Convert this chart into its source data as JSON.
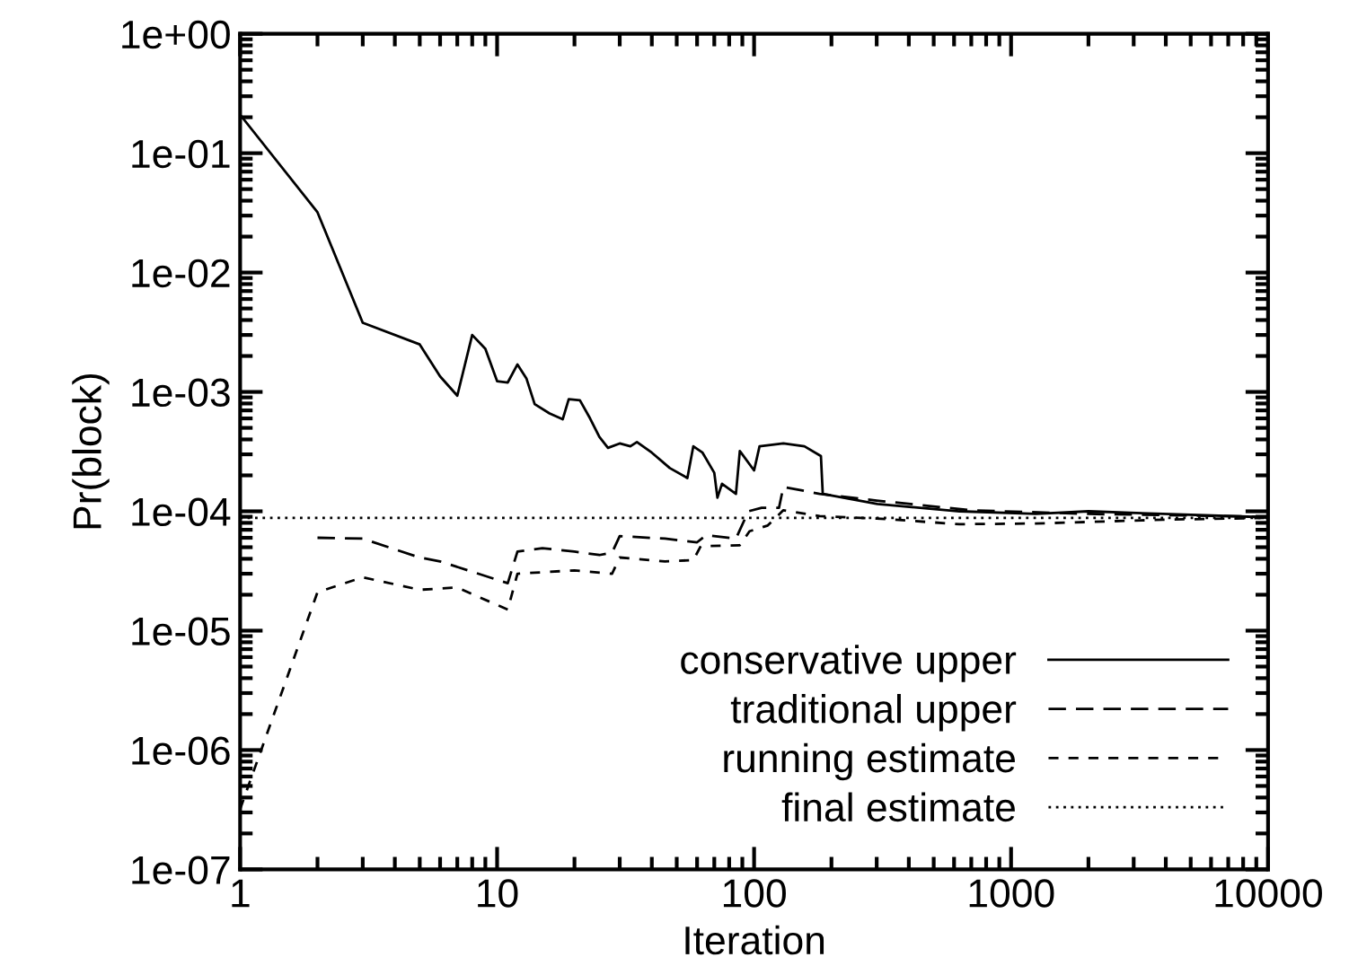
{
  "chart_data": {
    "type": "line",
    "xlabel": "Iteration",
    "ylabel": "Pr(block)",
    "log": "xy",
    "grid": false,
    "legend": "bottom right",
    "marker": "none",
    "xlim": [
      1,
      10000
    ],
    "xticks": [
      1,
      10,
      100,
      1000,
      10000
    ],
    "ylim": [
      1e-07,
      1
    ],
    "yticks": [
      {
        "value": 1e-07,
        "label": "1e-07"
      },
      {
        "value": 1e-06,
        "label": "1e-06"
      },
      {
        "value": 1e-05,
        "label": "1e-05"
      },
      {
        "value": 0.0001,
        "label": "1e-04"
      },
      {
        "value": 0.001,
        "label": "1e-03"
      },
      {
        "value": 0.01,
        "label": "1e-02"
      },
      {
        "value": 0.1,
        "label": "1e-01"
      },
      {
        "value": 1,
        "label": "1e+00"
      }
    ],
    "series": [
      {
        "name": "conservative upper",
        "color": "#000000",
        "line_style": "solid",
        "x": [
          1,
          2,
          3,
          5,
          6,
          7,
          8,
          9,
          10,
          11,
          12,
          13,
          14,
          16,
          18,
          19,
          21,
          23,
          25,
          27,
          30,
          33,
          35,
          40,
          47,
          55,
          58,
          63,
          70,
          72,
          75,
          85,
          88,
          100,
          105,
          130,
          157,
          182,
          185,
          302,
          630,
          1250,
          2000,
          3900,
          10000
        ],
        "values": [
          0.21,
          0.032,
          0.0038,
          0.0025,
          0.00135,
          0.00093,
          0.003,
          0.0023,
          0.00123,
          0.0012,
          0.0017,
          0.0013,
          0.00079,
          0.00066,
          0.00059,
          0.00087,
          0.00085,
          0.0006,
          0.00042,
          0.00034,
          0.00037,
          0.00035,
          0.00038,
          0.00031,
          0.00023,
          0.00019,
          0.00035,
          0.00031,
          0.00021,
          0.00013,
          0.00017,
          0.00014,
          0.00032,
          0.00022,
          0.00035,
          0.00037,
          0.00035,
          0.00029,
          0.00014,
          0.000115,
          0.0001,
          9.5e-05,
          0.0001,
          9.5e-05,
          8.9e-05
        ]
      },
      {
        "name": "traditional upper",
        "color": "#000000",
        "line_style": "dashed",
        "x": [
          2,
          3,
          5,
          6,
          11,
          12,
          15,
          20,
          25,
          28,
          30,
          45,
          60,
          65,
          85,
          95,
          107,
          125,
          130,
          180,
          300,
          700,
          2000,
          10000
        ],
        "values": [
          6e-05,
          5.9e-05,
          4.1e-05,
          3.8e-05,
          2.5e-05,
          4.6e-05,
          4.9e-05,
          4.6e-05,
          4.3e-05,
          4.5e-05,
          6.2e-05,
          5.9e-05,
          5.5e-05,
          6.3e-05,
          5.9e-05,
          0.0001,
          0.000107,
          0.000107,
          0.00016,
          0.00014,
          0.000123,
          0.000102,
          9.5e-05,
          9e-05
        ]
      },
      {
        "name": "running estimate",
        "color": "#000000",
        "line_style": "densely dashed",
        "x": [
          1,
          2,
          3,
          5,
          7,
          11,
          12,
          20,
          28,
          30,
          45,
          58,
          62,
          88,
          96,
          113,
          130,
          180,
          300,
          630,
          1250,
          3900,
          10000
        ],
        "values": [
          3.2e-07,
          2.1e-05,
          2.8e-05,
          2.2e-05,
          2.3e-05,
          1.5e-05,
          3e-05,
          3.2e-05,
          3e-05,
          4.1e-05,
          3.8e-05,
          3.9e-05,
          5.1e-05,
          5.2e-05,
          6.8e-05,
          7.6e-05,
          0.000102,
          9.1e-05,
          8.7e-05,
          7.8e-05,
          7.9e-05,
          8.5e-05,
          8.8e-05
        ]
      },
      {
        "name": "final estimate",
        "color": "#000000",
        "line_style": "dotted",
        "x": [
          1,
          10000
        ],
        "values": [
          8.8e-05,
          8.8e-05
        ]
      }
    ]
  }
}
